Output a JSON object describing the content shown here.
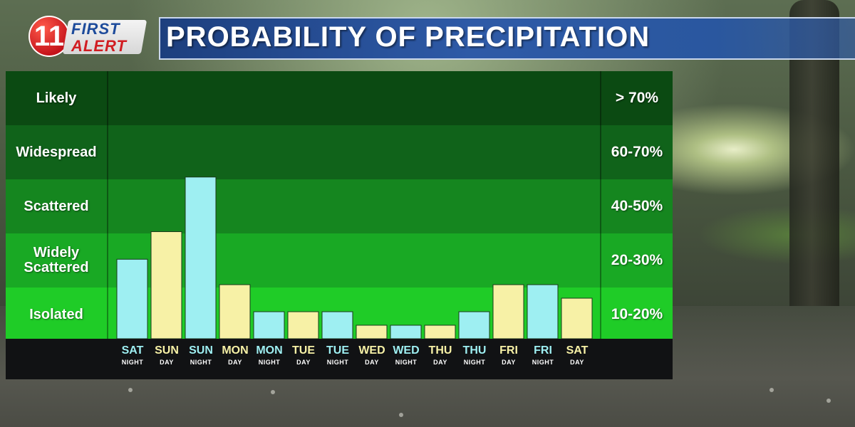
{
  "logo": {
    "number": "11",
    "line1": "FIRST",
    "line2": "ALERT"
  },
  "title": "PROBABILITY OF PRECIPITATION",
  "colors": {
    "day_bar": "#f7f1a6",
    "night_bar": "#9eeff2",
    "band_likely": "#0b4a12",
    "band_widespread": "#10631a",
    "band_scattered": "#15861f",
    "band_widely_scattered": "#19a924",
    "band_isolated": "#1fcc27"
  },
  "chart_data": {
    "type": "bar",
    "title": "PROBABILITY OF PRECIPITATION",
    "y_scale": "categorical bands",
    "bands": [
      {
        "label": "Likely",
        "range": "> 70%"
      },
      {
        "label": "Widespread",
        "range": "60-70%"
      },
      {
        "label": "Scattered",
        "range": "40-50%"
      },
      {
        "label": "Widely Scattered",
        "range": "20-30%"
      },
      {
        "label": "Isolated",
        "range": "10-20%"
      }
    ],
    "categories": [
      {
        "day": "SAT",
        "period": "NIGHT"
      },
      {
        "day": "SUN",
        "period": "DAY"
      },
      {
        "day": "SUN",
        "period": "NIGHT"
      },
      {
        "day": "MON",
        "period": "DAY"
      },
      {
        "day": "MON",
        "period": "NIGHT"
      },
      {
        "day": "TUE",
        "period": "DAY"
      },
      {
        "day": "TUE",
        "period": "NIGHT"
      },
      {
        "day": "WED",
        "period": "DAY"
      },
      {
        "day": "WED",
        "period": "NIGHT"
      },
      {
        "day": "THU",
        "period": "DAY"
      },
      {
        "day": "THU",
        "period": "NIGHT"
      },
      {
        "day": "FRI",
        "period": "DAY"
      },
      {
        "day": "FRI",
        "period": "NIGHT"
      },
      {
        "day": "SAT",
        "period": "DAY"
      }
    ],
    "values_band_level": [
      1.47,
      1.98,
      2.99,
      1.0,
      0.5,
      0.5,
      0.5,
      0.25,
      0.25,
      0.25,
      0.5,
      1.0,
      1.0,
      0.75
    ],
    "ylim": [
      0,
      5
    ]
  }
}
